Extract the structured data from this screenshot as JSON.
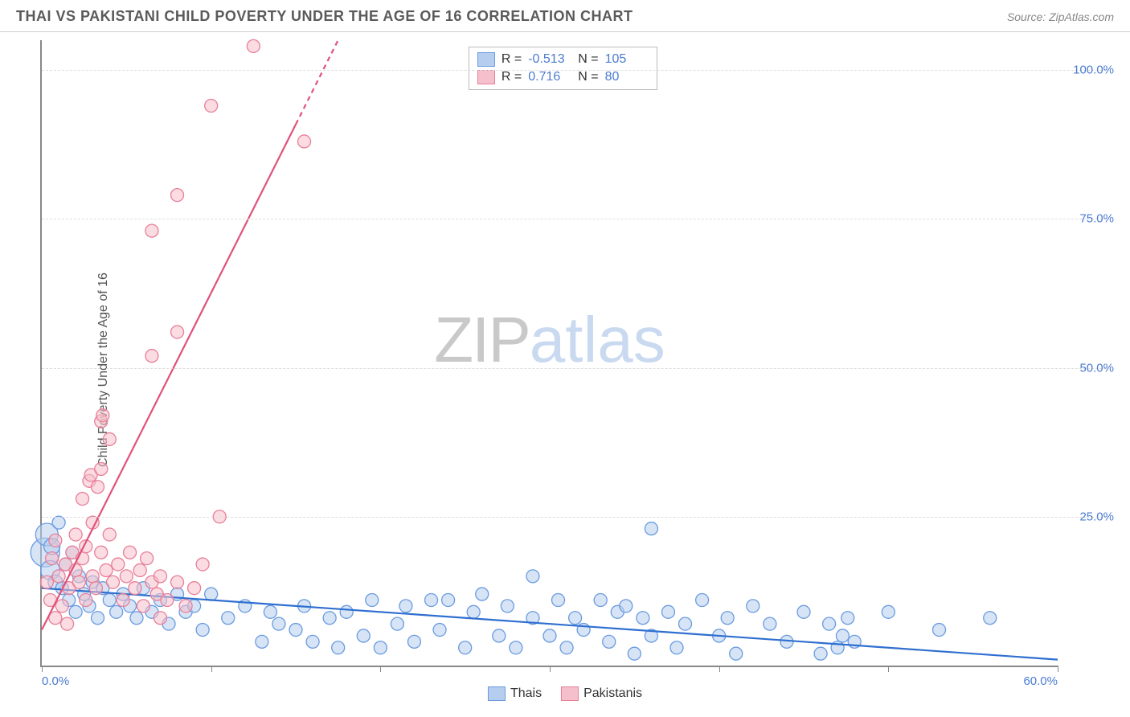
{
  "title": "THAI VS PAKISTANI CHILD POVERTY UNDER THE AGE OF 16 CORRELATION CHART",
  "source_prefix": "Source: ",
  "source_name": "ZipAtlas.com",
  "ylabel": "Child Poverty Under the Age of 16",
  "watermark": {
    "zip": "ZIP",
    "atlas": "atlas"
  },
  "chart": {
    "type": "scatter",
    "xlim": [
      0,
      60
    ],
    "ylim": [
      0,
      105
    ],
    "xtick_positions": [
      0,
      10,
      20,
      30,
      40,
      50,
      60
    ],
    "xtick_labels_shown": {
      "0": "0.0%",
      "60": "60.0%"
    },
    "ytick_positions": [
      25,
      50,
      75,
      100
    ],
    "ytick_labels": {
      "25": "25.0%",
      "50": "50.0%",
      "75": "75.0%",
      "100": "100.0%"
    },
    "grid_color": "#dddddd",
    "axis_color": "#888888",
    "background_color": "#ffffff",
    "tick_label_color": "#4a7bd0",
    "tick_label_fontsize": 15,
    "title_fontsize": 18,
    "title_color": "#5a5a5a",
    "ylabel_fontsize": 16,
    "ylabel_color": "#555555",
    "series": [
      {
        "name": "Thais",
        "marker_fill": "#b5cdef",
        "marker_stroke": "#6a9be0",
        "marker_fill_opacity": 0.55,
        "line_color": "#2f6fd0",
        "line_width": 2.2,
        "marker_radius_default": 8,
        "regression": {
          "x1": 0,
          "y1": 13,
          "x2": 60,
          "y2": 1
        },
        "R": "-0.513",
        "N": "105",
        "points": [
          {
            "x": 0.2,
            "y": 19,
            "r": 18
          },
          {
            "x": 0.3,
            "y": 22,
            "r": 14
          },
          {
            "x": 0.5,
            "y": 16,
            "r": 12
          },
          {
            "x": 0.6,
            "y": 20,
            "r": 10
          },
          {
            "x": 0.8,
            "y": 14,
            "r": 9
          },
          {
            "x": 1.0,
            "y": 24,
            "r": 8
          },
          {
            "x": 1.2,
            "y": 13,
            "r": 8
          },
          {
            "x": 1.4,
            "y": 17,
            "r": 8
          },
          {
            "x": 1.6,
            "y": 11,
            "r": 8
          },
          {
            "x": 1.8,
            "y": 19,
            "r": 8
          },
          {
            "x": 2.0,
            "y": 9,
            "r": 8
          },
          {
            "x": 2.2,
            "y": 15,
            "r": 8
          },
          {
            "x": 2.5,
            "y": 12,
            "r": 8
          },
          {
            "x": 2.8,
            "y": 10,
            "r": 8
          },
          {
            "x": 3.0,
            "y": 14,
            "r": 8
          },
          {
            "x": 3.3,
            "y": 8,
            "r": 8
          },
          {
            "x": 3.6,
            "y": 13,
            "r": 8
          },
          {
            "x": 4.0,
            "y": 11,
            "r": 8
          },
          {
            "x": 4.4,
            "y": 9,
            "r": 8
          },
          {
            "x": 4.8,
            "y": 12,
            "r": 8
          },
          {
            "x": 5.2,
            "y": 10,
            "r": 8
          },
          {
            "x": 5.6,
            "y": 8,
            "r": 8
          },
          {
            "x": 6.0,
            "y": 13,
            "r": 8
          },
          {
            "x": 6.5,
            "y": 9,
            "r": 8
          },
          {
            "x": 7.0,
            "y": 11,
            "r": 8
          },
          {
            "x": 7.5,
            "y": 7,
            "r": 8
          },
          {
            "x": 8.0,
            "y": 12,
            "r": 8
          },
          {
            "x": 8.5,
            "y": 9,
            "r": 8
          },
          {
            "x": 9.0,
            "y": 10,
            "r": 8
          },
          {
            "x": 9.5,
            "y": 6,
            "r": 8
          },
          {
            "x": 10,
            "y": 12,
            "r": 8
          },
          {
            "x": 11,
            "y": 8,
            "r": 8
          },
          {
            "x": 12,
            "y": 10,
            "r": 8
          },
          {
            "x": 13,
            "y": 4,
            "r": 8
          },
          {
            "x": 13.5,
            "y": 9,
            "r": 8
          },
          {
            "x": 14,
            "y": 7,
            "r": 8
          },
          {
            "x": 15,
            "y": 6,
            "r": 8
          },
          {
            "x": 15.5,
            "y": 10,
            "r": 8
          },
          {
            "x": 16,
            "y": 4,
            "r": 8
          },
          {
            "x": 17,
            "y": 8,
            "r": 8
          },
          {
            "x": 17.5,
            "y": 3,
            "r": 8
          },
          {
            "x": 18,
            "y": 9,
            "r": 8
          },
          {
            "x": 19,
            "y": 5,
            "r": 8
          },
          {
            "x": 19.5,
            "y": 11,
            "r": 8
          },
          {
            "x": 20,
            "y": 3,
            "r": 8
          },
          {
            "x": 21,
            "y": 7,
            "r": 8
          },
          {
            "x": 21.5,
            "y": 10,
            "r": 8
          },
          {
            "x": 22,
            "y": 4,
            "r": 8
          },
          {
            "x": 23,
            "y": 11,
            "r": 8
          },
          {
            "x": 23.5,
            "y": 6,
            "r": 8
          },
          {
            "x": 24,
            "y": 11,
            "r": 8
          },
          {
            "x": 25,
            "y": 3,
            "r": 8
          },
          {
            "x": 25.5,
            "y": 9,
            "r": 8
          },
          {
            "x": 26,
            "y": 12,
            "r": 8
          },
          {
            "x": 27,
            "y": 5,
            "r": 8
          },
          {
            "x": 27.5,
            "y": 10,
            "r": 8
          },
          {
            "x": 28,
            "y": 3,
            "r": 8
          },
          {
            "x": 29,
            "y": 8,
            "r": 8
          },
          {
            "x": 29,
            "y": 15,
            "r": 8
          },
          {
            "x": 30,
            "y": 5,
            "r": 8
          },
          {
            "x": 30.5,
            "y": 11,
            "r": 8
          },
          {
            "x": 31,
            "y": 3,
            "r": 8
          },
          {
            "x": 31.5,
            "y": 8,
            "r": 8
          },
          {
            "x": 32,
            "y": 6,
            "r": 8
          },
          {
            "x": 33,
            "y": 11,
            "r": 8
          },
          {
            "x": 33.5,
            "y": 4,
            "r": 8
          },
          {
            "x": 34,
            "y": 9,
            "r": 8
          },
          {
            "x": 34.5,
            "y": 10,
            "r": 8
          },
          {
            "x": 35,
            "y": 2,
            "r": 8
          },
          {
            "x": 35.5,
            "y": 8,
            "r": 8
          },
          {
            "x": 36,
            "y": 5,
            "r": 8
          },
          {
            "x": 36,
            "y": 23,
            "r": 8
          },
          {
            "x": 37,
            "y": 9,
            "r": 8
          },
          {
            "x": 37.5,
            "y": 3,
            "r": 8
          },
          {
            "x": 38,
            "y": 7,
            "r": 8
          },
          {
            "x": 39,
            "y": 11,
            "r": 8
          },
          {
            "x": 40,
            "y": 5,
            "r": 8
          },
          {
            "x": 40.5,
            "y": 8,
            "r": 8
          },
          {
            "x": 41,
            "y": 2,
            "r": 8
          },
          {
            "x": 42,
            "y": 10,
            "r": 8
          },
          {
            "x": 43,
            "y": 7,
            "r": 8
          },
          {
            "x": 44,
            "y": 4,
            "r": 8
          },
          {
            "x": 45,
            "y": 9,
            "r": 8
          },
          {
            "x": 46,
            "y": 2,
            "r": 8
          },
          {
            "x": 46.5,
            "y": 7,
            "r": 8
          },
          {
            "x": 47,
            "y": 3,
            "r": 8
          },
          {
            "x": 47.3,
            "y": 5,
            "r": 8
          },
          {
            "x": 47.6,
            "y": 8,
            "r": 8
          },
          {
            "x": 48,
            "y": 4,
            "r": 8
          },
          {
            "x": 50,
            "y": 9,
            "r": 8
          },
          {
            "x": 53,
            "y": 6,
            "r": 8
          },
          {
            "x": 56,
            "y": 8,
            "r": 8
          }
        ]
      },
      {
        "name": "Pakistanis",
        "marker_fill": "#f5c0cb",
        "marker_stroke": "#e87f98",
        "marker_fill_opacity": 0.55,
        "line_color": "#e0527a",
        "line_width": 2.2,
        "marker_radius_default": 8,
        "regression": {
          "x1": 0,
          "y1": 6,
          "x2": 17.5,
          "y2": 105
        },
        "regression_dash_after_x": 15,
        "R": "0.716",
        "N": "80",
        "points": [
          {
            "x": 0.3,
            "y": 14,
            "r": 8
          },
          {
            "x": 0.5,
            "y": 11,
            "r": 8
          },
          {
            "x": 0.6,
            "y": 18,
            "r": 8
          },
          {
            "x": 0.8,
            "y": 8,
            "r": 8
          },
          {
            "x": 0.8,
            "y": 21,
            "r": 8
          },
          {
            "x": 1.0,
            "y": 15,
            "r": 8
          },
          {
            "x": 1.2,
            "y": 10,
            "r": 8
          },
          {
            "x": 1.4,
            "y": 17,
            "r": 8
          },
          {
            "x": 1.5,
            "y": 7,
            "r": 8
          },
          {
            "x": 1.6,
            "y": 13,
            "r": 8
          },
          {
            "x": 1.8,
            "y": 19,
            "r": 8
          },
          {
            "x": 2.0,
            "y": 16,
            "r": 8
          },
          {
            "x": 2.0,
            "y": 22,
            "r": 8
          },
          {
            "x": 2.2,
            "y": 14,
            "r": 8
          },
          {
            "x": 2.4,
            "y": 28,
            "r": 8
          },
          {
            "x": 2.4,
            "y": 18,
            "r": 8
          },
          {
            "x": 2.6,
            "y": 11,
            "r": 8
          },
          {
            "x": 2.6,
            "y": 20,
            "r": 8
          },
          {
            "x": 2.8,
            "y": 31,
            "r": 8
          },
          {
            "x": 2.9,
            "y": 32,
            "r": 8
          },
          {
            "x": 3.0,
            "y": 24,
            "r": 8
          },
          {
            "x": 3.0,
            "y": 15,
            "r": 8
          },
          {
            "x": 3.2,
            "y": 13,
            "r": 8
          },
          {
            "x": 3.3,
            "y": 30,
            "r": 8
          },
          {
            "x": 3.5,
            "y": 33,
            "r": 8
          },
          {
            "x": 3.5,
            "y": 19,
            "r": 8
          },
          {
            "x": 3.5,
            "y": 41,
            "r": 8
          },
          {
            "x": 3.6,
            "y": 42,
            "r": 8
          },
          {
            "x": 3.8,
            "y": 16,
            "r": 8
          },
          {
            "x": 4.0,
            "y": 38,
            "r": 8
          },
          {
            "x": 4.0,
            "y": 22,
            "r": 8
          },
          {
            "x": 4.2,
            "y": 14,
            "r": 8
          },
          {
            "x": 4.5,
            "y": 17,
            "r": 8
          },
          {
            "x": 4.8,
            "y": 11,
            "r": 8
          },
          {
            "x": 5.0,
            "y": 15,
            "r": 8
          },
          {
            "x": 5.2,
            "y": 19,
            "r": 8
          },
          {
            "x": 5.5,
            "y": 13,
            "r": 8
          },
          {
            "x": 5.8,
            "y": 16,
            "r": 8
          },
          {
            "x": 6.0,
            "y": 10,
            "r": 8
          },
          {
            "x": 6.2,
            "y": 18,
            "r": 8
          },
          {
            "x": 6.5,
            "y": 52,
            "r": 8
          },
          {
            "x": 6.5,
            "y": 14,
            "r": 8
          },
          {
            "x": 6.5,
            "y": 73,
            "r": 8
          },
          {
            "x": 6.8,
            "y": 12,
            "r": 8
          },
          {
            "x": 7.0,
            "y": 8,
            "r": 8
          },
          {
            "x": 7.0,
            "y": 15,
            "r": 8
          },
          {
            "x": 7.4,
            "y": 11,
            "r": 8
          },
          {
            "x": 8.0,
            "y": 56,
            "r": 8
          },
          {
            "x": 8.0,
            "y": 14,
            "r": 8
          },
          {
            "x": 8.0,
            "y": 79,
            "r": 8
          },
          {
            "x": 8.5,
            "y": 10,
            "r": 8
          },
          {
            "x": 9.0,
            "y": 13,
            "r": 8
          },
          {
            "x": 9.5,
            "y": 17,
            "r": 8
          },
          {
            "x": 10.0,
            "y": 94,
            "r": 8
          },
          {
            "x": 10.5,
            "y": 25,
            "r": 8
          },
          {
            "x": 12.5,
            "y": 104,
            "r": 8
          },
          {
            "x": 15.5,
            "y": 88,
            "r": 8
          }
        ]
      }
    ]
  },
  "legend": {
    "position": "bottom-center",
    "items": [
      {
        "label": "Thais",
        "fill": "#b5cdef",
        "stroke": "#6a9be0"
      },
      {
        "label": "Pakistanis",
        "fill": "#f5c0cb",
        "stroke": "#e87f98"
      }
    ]
  },
  "stats_box": {
    "R_label": "R =",
    "N_label": "N =",
    "rows": [
      {
        "fill": "#b5cdef",
        "stroke": "#6a9be0",
        "R": "-0.513",
        "N": "105"
      },
      {
        "fill": "#f5c0cb",
        "stroke": "#e87f98",
        "R": "0.716",
        "N": "80"
      }
    ]
  }
}
